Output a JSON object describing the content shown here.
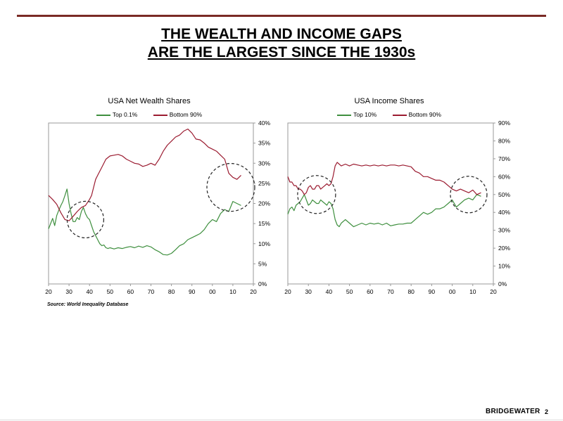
{
  "page": {
    "title_line1": "THE WEALTH AND INCOME GAPS",
    "title_line2": "ARE THE LARGEST SINCE THE 1930s",
    "source": "Source: World Inequality Database",
    "brand": "BRIDGEWATER",
    "page_number": "2"
  },
  "colors": {
    "top_series": "#3e8f3e",
    "bottom_series": "#9b1b30",
    "rule": "#7a2a25"
  },
  "chart_data": [
    {
      "type": "line",
      "title": "USA Net Wealth Shares",
      "x_tick_labels": [
        "20",
        "30",
        "40",
        "50",
        "60",
        "70",
        "80",
        "90",
        "00",
        "10",
        "20"
      ],
      "xlim": [
        1920,
        2020
      ],
      "ylim": [
        0,
        0.4
      ],
      "y_tick_labels": [
        "0%",
        "5%",
        "10%",
        "15%",
        "20%",
        "25%",
        "30%",
        "35%",
        "40%"
      ],
      "y_axis_side": "right",
      "grid": false,
      "legend": "top",
      "series": [
        {
          "name": "Top 0.1%",
          "color": "#3e8f3e",
          "x": [
            1920,
            1921,
            1922,
            1923,
            1924,
            1925,
            1926,
            1927,
            1928,
            1929,
            1930,
            1931,
            1932,
            1933,
            1934,
            1935,
            1936,
            1937,
            1938,
            1939,
            1940,
            1941,
            1942,
            1943,
            1944,
            1945,
            1946,
            1947,
            1948,
            1949,
            1950,
            1952,
            1954,
            1956,
            1958,
            1960,
            1962,
            1964,
            1966,
            1968,
            1970,
            1972,
            1974,
            1976,
            1978,
            1980,
            1982,
            1984,
            1986,
            1988,
            1990,
            1992,
            1994,
            1996,
            1998,
            2000,
            2002,
            2004,
            2006,
            2008,
            2010,
            2012,
            2014
          ],
          "y": [
            0.137,
            0.15,
            0.163,
            0.145,
            0.17,
            0.183,
            0.195,
            0.205,
            0.22,
            0.236,
            0.2,
            0.175,
            0.155,
            0.155,
            0.165,
            0.16,
            0.18,
            0.19,
            0.175,
            0.165,
            0.16,
            0.145,
            0.13,
            0.12,
            0.11,
            0.1,
            0.095,
            0.097,
            0.09,
            0.088,
            0.09,
            0.087,
            0.09,
            0.088,
            0.091,
            0.093,
            0.09,
            0.094,
            0.091,
            0.095,
            0.092,
            0.085,
            0.08,
            0.073,
            0.072,
            0.076,
            0.085,
            0.095,
            0.1,
            0.11,
            0.115,
            0.12,
            0.125,
            0.135,
            0.15,
            0.16,
            0.155,
            0.175,
            0.185,
            0.18,
            0.205,
            0.2,
            0.195
          ]
        },
        {
          "name": "Bottom 90%",
          "color": "#9b1b30",
          "x": [
            1920,
            1922,
            1924,
            1926,
            1928,
            1930,
            1932,
            1934,
            1936,
            1938,
            1940,
            1941,
            1942,
            1943,
            1944,
            1946,
            1948,
            1950,
            1952,
            1954,
            1956,
            1958,
            1960,
            1962,
            1964,
            1966,
            1968,
            1970,
            1972,
            1974,
            1976,
            1978,
            1980,
            1982,
            1984,
            1986,
            1988,
            1990,
            1992,
            1994,
            1996,
            1998,
            2000,
            2002,
            2004,
            2006,
            2008,
            2010,
            2012,
            2014
          ],
          "y": [
            0.22,
            0.21,
            0.198,
            0.177,
            0.16,
            0.157,
            0.168,
            0.18,
            0.19,
            0.195,
            0.21,
            0.22,
            0.24,
            0.26,
            0.27,
            0.29,
            0.31,
            0.318,
            0.32,
            0.322,
            0.318,
            0.31,
            0.305,
            0.3,
            0.298,
            0.292,
            0.295,
            0.3,
            0.295,
            0.31,
            0.33,
            0.345,
            0.355,
            0.365,
            0.37,
            0.38,
            0.385,
            0.375,
            0.36,
            0.358,
            0.35,
            0.34,
            0.335,
            0.33,
            0.32,
            0.31,
            0.275,
            0.265,
            0.26,
            0.27
          ]
        }
      ]
    },
    {
      "type": "line",
      "title": "USA Income Shares",
      "x_tick_labels": [
        "20",
        "30",
        "40",
        "50",
        "60",
        "70",
        "80",
        "90",
        "00",
        "10",
        "20"
      ],
      "xlim": [
        1920,
        2020
      ],
      "ylim": [
        0,
        0.9
      ],
      "y_tick_labels": [
        "0%",
        "10%",
        "20%",
        "30%",
        "40%",
        "50%",
        "60%",
        "70%",
        "80%",
        "90%"
      ],
      "y_axis_side": "right",
      "grid": false,
      "legend": "top",
      "series": [
        {
          "name": "Top 10%",
          "color": "#3e8f3e",
          "x": [
            1920,
            1921,
            1922,
            1923,
            1924,
            1925,
            1926,
            1927,
            1928,
            1929,
            1930,
            1931,
            1932,
            1933,
            1934,
            1935,
            1936,
            1937,
            1938,
            1939,
            1940,
            1941,
            1942,
            1943,
            1944,
            1945,
            1946,
            1948,
            1950,
            1952,
            1954,
            1956,
            1958,
            1960,
            1962,
            1964,
            1966,
            1968,
            1970,
            1972,
            1974,
            1976,
            1978,
            1980,
            1982,
            1984,
            1986,
            1988,
            1990,
            1992,
            1994,
            1996,
            1998,
            2000,
            2002,
            2004,
            2006,
            2008,
            2010,
            2012,
            2014
          ],
          "y": [
            0.39,
            0.42,
            0.43,
            0.41,
            0.44,
            0.45,
            0.46,
            0.48,
            0.5,
            0.47,
            0.44,
            0.45,
            0.47,
            0.46,
            0.45,
            0.45,
            0.47,
            0.46,
            0.45,
            0.44,
            0.46,
            0.45,
            0.42,
            0.36,
            0.33,
            0.32,
            0.34,
            0.36,
            0.34,
            0.32,
            0.33,
            0.34,
            0.33,
            0.34,
            0.335,
            0.34,
            0.33,
            0.34,
            0.325,
            0.33,
            0.335,
            0.335,
            0.34,
            0.34,
            0.36,
            0.38,
            0.4,
            0.39,
            0.4,
            0.42,
            0.42,
            0.43,
            0.45,
            0.47,
            0.43,
            0.45,
            0.47,
            0.48,
            0.47,
            0.5,
            0.49
          ]
        },
        {
          "name": "Bottom 90%",
          "color": "#9b1b30",
          "x": [
            1920,
            1921,
            1922,
            1923,
            1924,
            1925,
            1926,
            1927,
            1928,
            1929,
            1930,
            1931,
            1932,
            1933,
            1934,
            1935,
            1936,
            1937,
            1938,
            1939,
            1940,
            1941,
            1942,
            1943,
            1944,
            1946,
            1948,
            1950,
            1952,
            1954,
            1956,
            1958,
            1960,
            1962,
            1964,
            1966,
            1968,
            1970,
            1972,
            1974,
            1976,
            1978,
            1980,
            1982,
            1984,
            1986,
            1988,
            1990,
            1992,
            1994,
            1996,
            1998,
            2000,
            2002,
            2004,
            2006,
            2008,
            2010,
            2012,
            2014
          ],
          "y": [
            0.6,
            0.57,
            0.57,
            0.55,
            0.55,
            0.53,
            0.53,
            0.52,
            0.5,
            0.51,
            0.54,
            0.55,
            0.53,
            0.53,
            0.55,
            0.55,
            0.53,
            0.54,
            0.55,
            0.56,
            0.55,
            0.56,
            0.6,
            0.66,
            0.68,
            0.66,
            0.67,
            0.66,
            0.67,
            0.665,
            0.66,
            0.665,
            0.66,
            0.665,
            0.66,
            0.665,
            0.66,
            0.665,
            0.665,
            0.66,
            0.665,
            0.66,
            0.655,
            0.63,
            0.62,
            0.6,
            0.6,
            0.59,
            0.58,
            0.58,
            0.57,
            0.55,
            0.53,
            0.52,
            0.53,
            0.52,
            0.51,
            0.525,
            0.5,
            0.51
          ]
        }
      ]
    }
  ]
}
